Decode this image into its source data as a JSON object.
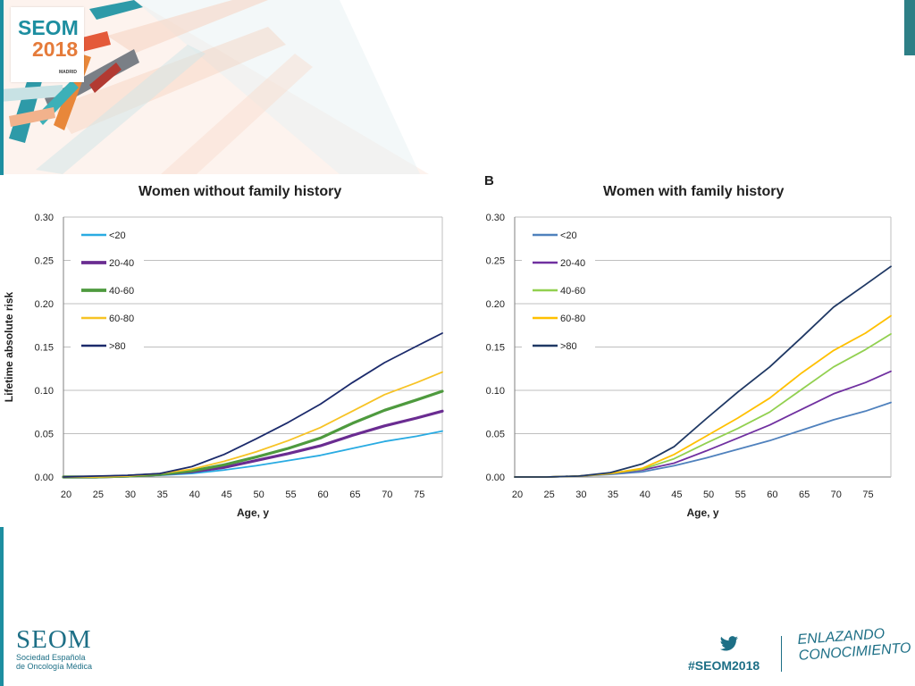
{
  "brand": {
    "logo_word": "SEOM",
    "logo_year": "2018",
    "logo_city": "MADRID",
    "footer_name": "SEOM",
    "footer_sub_line1": "Sociedad Española",
    "footer_sub_line2": "de Oncología Médica",
    "hashtag": "#SEOM2018",
    "slogan_line1": "ENLAZANDO",
    "slogan_line2": "CONOCIMIENTO",
    "colors": {
      "teal": "#1d8ea0",
      "orange": "#e57b3a",
      "navy": "#1d6f86"
    }
  },
  "icons": {
    "social": "twitter-bird-icon"
  },
  "panel_b_letter": "B",
  "chart_data": [
    {
      "type": "line",
      "title": "Women without family history",
      "xlabel": "Age, y",
      "ylabel": "Lifetime absolute risk",
      "xlim": [
        20,
        79
      ],
      "ylim": [
        0,
        0.3
      ],
      "xticks": [
        "20",
        "25",
        "30",
        "35",
        "40",
        "45",
        "50",
        "55",
        "60",
        "65",
        "70",
        "75"
      ],
      "yticks": [
        "0.00",
        "0.05",
        "0.10",
        "0.15",
        "0.20",
        "0.25",
        "0.30"
      ],
      "grid": "horizontal",
      "legend": "top-left",
      "x": [
        20,
        25,
        30,
        35,
        40,
        45,
        50,
        55,
        60,
        65,
        70,
        75,
        79
      ],
      "series": [
        {
          "name": "<20",
          "color": "#29abe2",
          "width": 1.8,
          "values": [
            0,
            0,
            0.001,
            0.002,
            0.004,
            0.008,
            0.013,
            0.019,
            0.025,
            0.033,
            0.041,
            0.047,
            0.053
          ]
        },
        {
          "name": "20-40",
          "color": "#6a2c91",
          "width": 3.2,
          "values": [
            0,
            0,
            0.001,
            0.003,
            0.006,
            0.011,
            0.019,
            0.027,
            0.036,
            0.048,
            0.059,
            0.068,
            0.076
          ]
        },
        {
          "name": "40-60",
          "color": "#4e9a3e",
          "width": 3.2,
          "values": [
            0,
            0,
            0.001,
            0.003,
            0.007,
            0.014,
            0.023,
            0.033,
            0.045,
            0.062,
            0.077,
            0.089,
            0.099
          ]
        },
        {
          "name": "60-80",
          "color": "#f7c325",
          "width": 1.8,
          "values": [
            0,
            0,
            0.001,
            0.004,
            0.009,
            0.018,
            0.029,
            0.042,
            0.057,
            0.076,
            0.095,
            0.109,
            0.121
          ]
        },
        {
          "name": ">80",
          "color": "#1b2a6b",
          "width": 1.8,
          "values": [
            0,
            0.001,
            0.002,
            0.004,
            0.012,
            0.026,
            0.044,
            0.063,
            0.084,
            0.109,
            0.132,
            0.151,
            0.166
          ]
        }
      ]
    },
    {
      "type": "line",
      "title": "Women with family history",
      "xlabel": "Age, y",
      "ylabel": "",
      "xlim": [
        20,
        79
      ],
      "ylim": [
        0,
        0.3
      ],
      "xticks": [
        "20",
        "25",
        "30",
        "35",
        "40",
        "45",
        "50",
        "55",
        "60",
        "65",
        "70",
        "75"
      ],
      "yticks": [
        "0.00",
        "0.05",
        "0.10",
        "0.15",
        "0.20",
        "0.25",
        "0.30"
      ],
      "grid": "horizontal",
      "legend": "top-left",
      "x": [
        20,
        25,
        30,
        35,
        40,
        45,
        50,
        55,
        60,
        65,
        70,
        75,
        79
      ],
      "series": [
        {
          "name": "<20",
          "color": "#4f81bd",
          "width": 1.8,
          "values": [
            0,
            0,
            0.001,
            0.003,
            0.006,
            0.013,
            0.022,
            0.032,
            0.042,
            0.054,
            0.066,
            0.076,
            0.086
          ]
        },
        {
          "name": "20-40",
          "color": "#7030a0",
          "width": 1.8,
          "values": [
            0,
            0,
            0.001,
            0.004,
            0.008,
            0.016,
            0.03,
            0.045,
            0.06,
            0.078,
            0.096,
            0.109,
            0.122
          ]
        },
        {
          "name": "40-60",
          "color": "#92d050",
          "width": 1.8,
          "values": [
            0,
            0,
            0.001,
            0.004,
            0.009,
            0.021,
            0.039,
            0.056,
            0.075,
            0.101,
            0.127,
            0.147,
            0.165
          ]
        },
        {
          "name": "60-80",
          "color": "#ffc000",
          "width": 1.8,
          "values": [
            0,
            0,
            0.001,
            0.004,
            0.01,
            0.026,
            0.047,
            0.068,
            0.091,
            0.12,
            0.146,
            0.166,
            0.186
          ]
        },
        {
          "name": ">80",
          "color": "#1f3864",
          "width": 1.8,
          "values": [
            0,
            0,
            0.001,
            0.005,
            0.015,
            0.035,
            0.067,
            0.098,
            0.127,
            0.161,
            0.196,
            0.222,
            0.243
          ]
        }
      ]
    }
  ]
}
